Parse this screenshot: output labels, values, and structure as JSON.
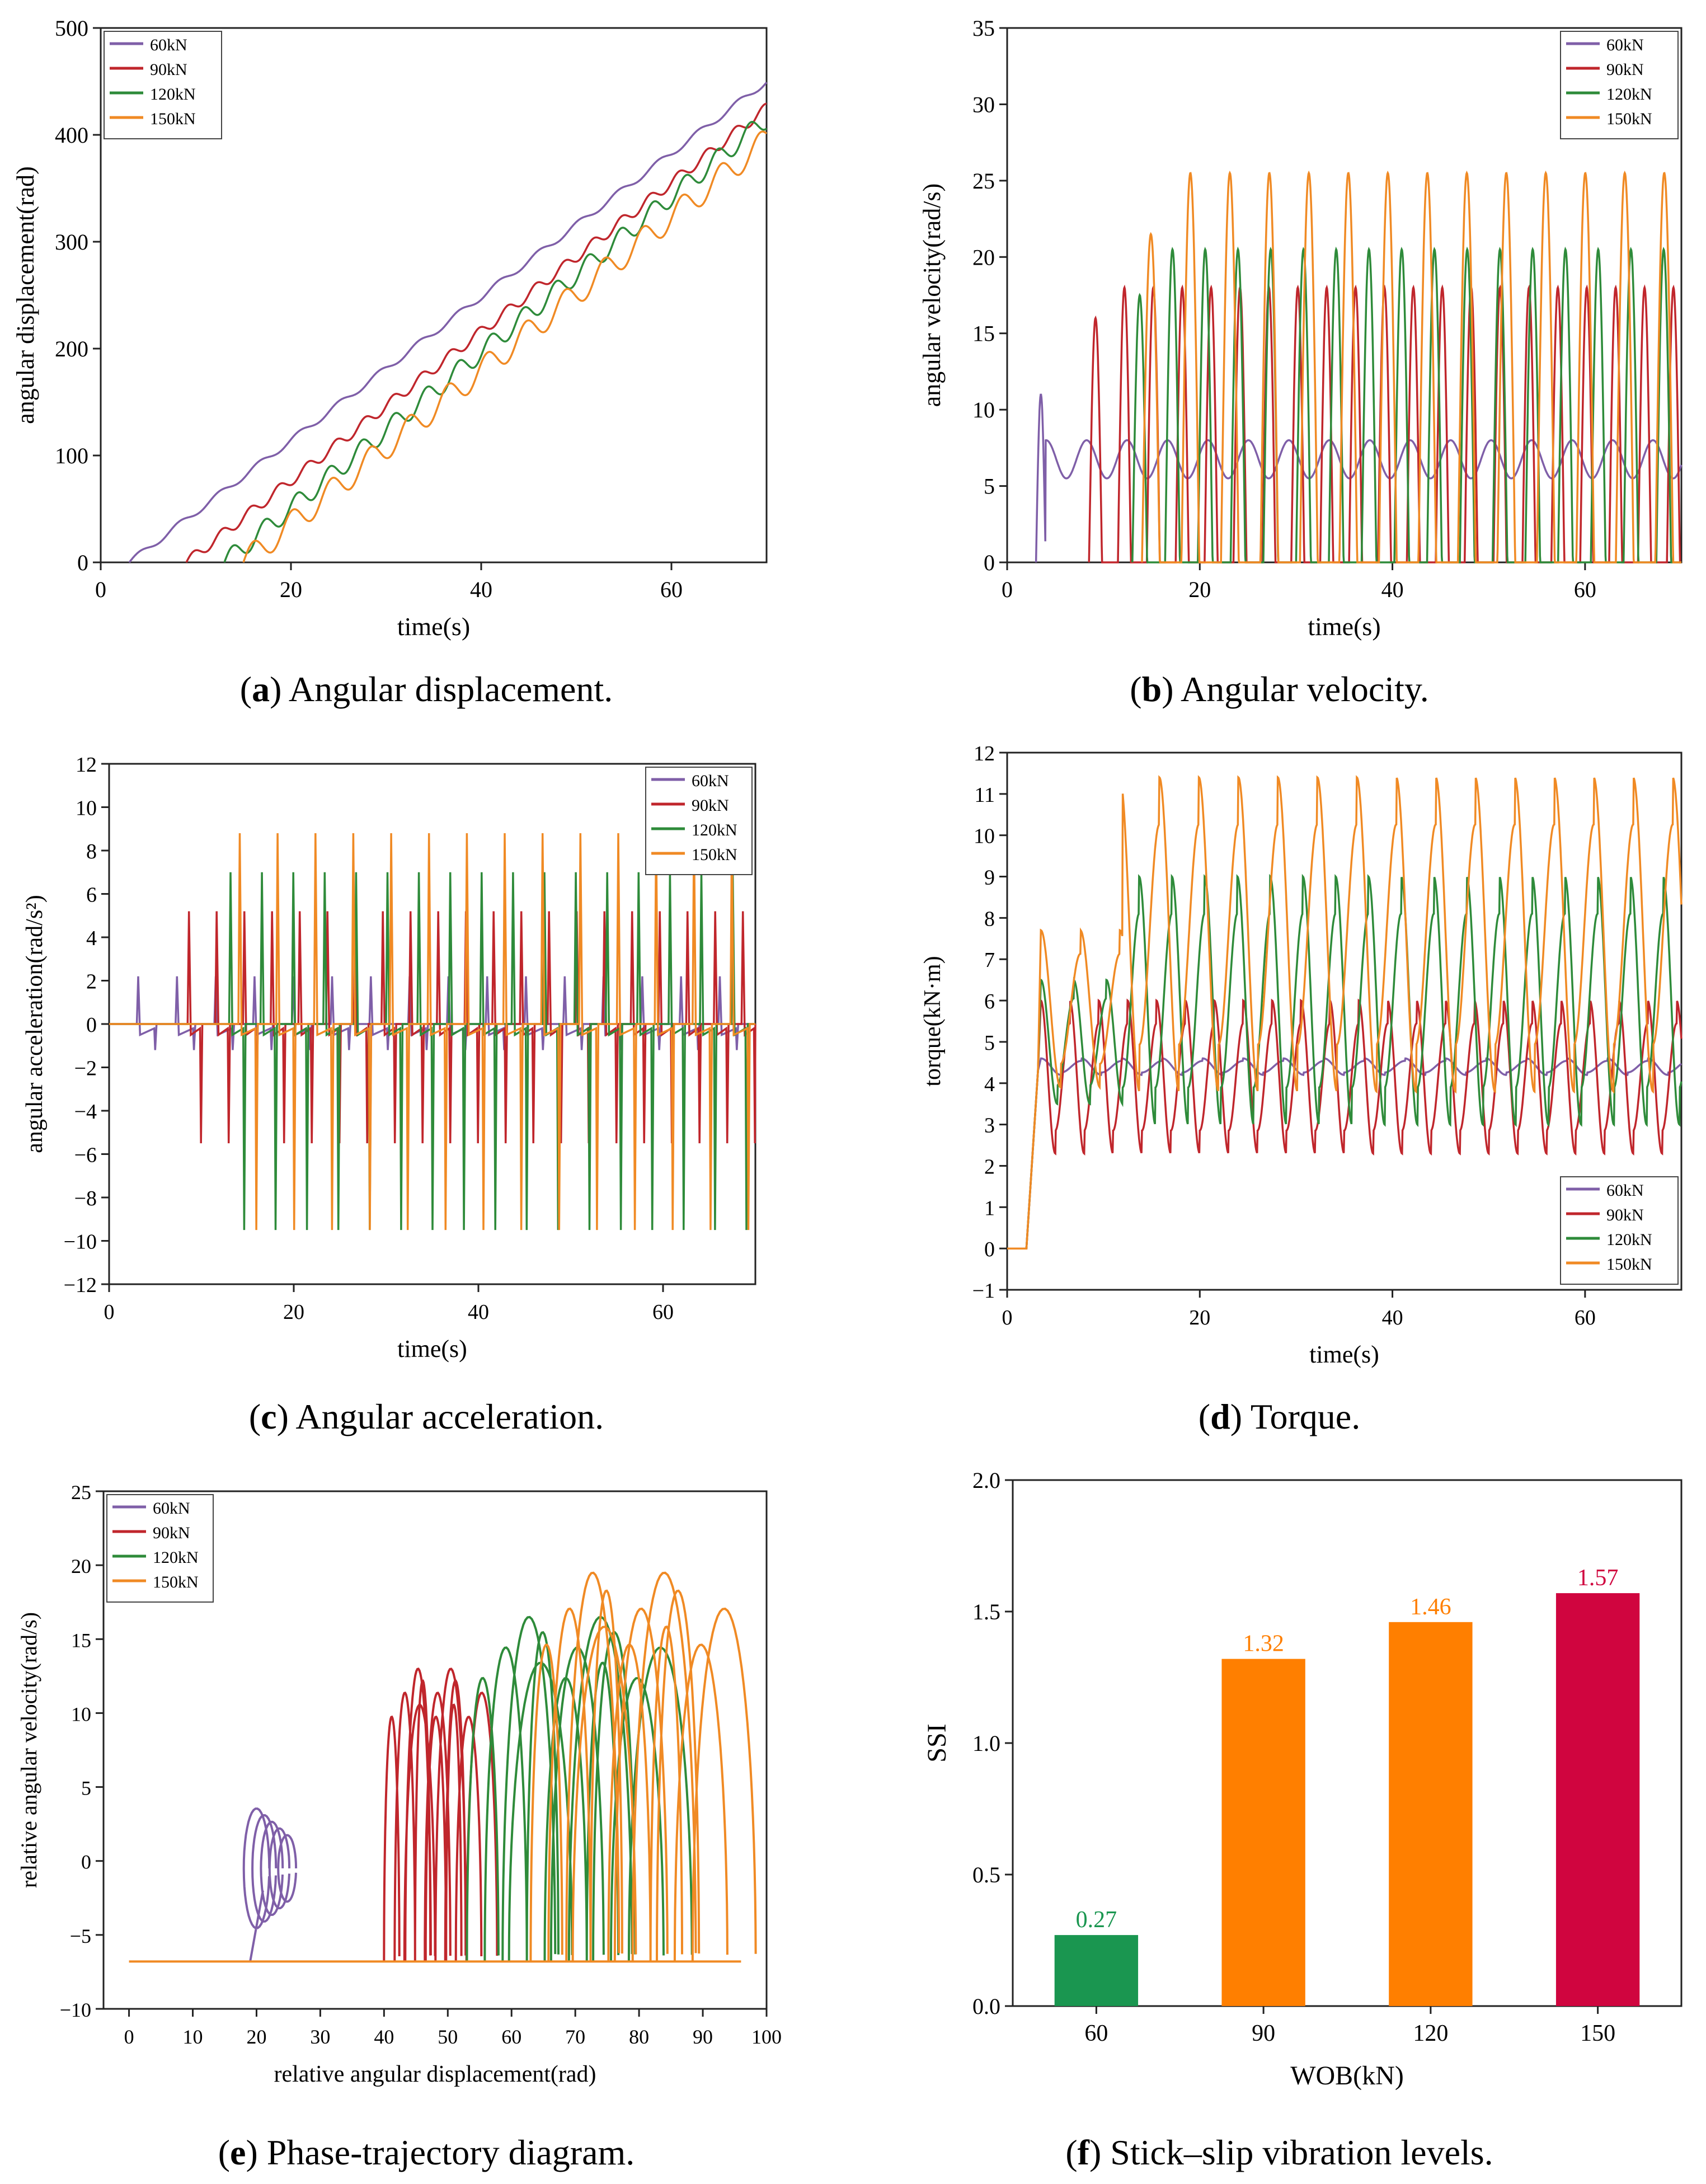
{
  "colors": {
    "s60": "#7f5fa8",
    "s90": "#c0262c",
    "s120": "#2e8b3a",
    "s150": "#f08a24",
    "bar60": "#1a9650",
    "bar90": "#ff7f00",
    "bar150": "#d0053f"
  },
  "captions": {
    "a": {
      "letter": "a",
      "text": " Angular displacement."
    },
    "b": {
      "letter": "b",
      "text": " Angular velocity."
    },
    "c": {
      "letter": "c",
      "text": " Angular acceleration."
    },
    "d": {
      "letter": "d",
      "text": " Torque."
    },
    "e": {
      "letter": "e",
      "text": " Phase-trajectory diagram."
    },
    "f": {
      "letter": "f",
      "text": " Stick–slip vibration levels."
    }
  },
  "chart_data": [
    {
      "id": "a",
      "type": "line",
      "xlabel": "time(s)",
      "ylabel": "angular displacement(rad)",
      "xlim": [
        0,
        70
      ],
      "ylim": [
        0,
        500
      ],
      "xticks": [
        0,
        20,
        40,
        60
      ],
      "yticks": [
        0,
        100,
        200,
        300,
        400,
        500
      ],
      "legend": [
        "60kN",
        "90kN",
        "120kN",
        "150kN"
      ],
      "legend_pos": "top-left",
      "series": [
        {
          "name": "60kN",
          "start": 3,
          "end_value": 450
        },
        {
          "name": "90kN",
          "start": 9,
          "end_value": 425
        },
        {
          "name": "120kN",
          "start": 13,
          "end_value": 415
        },
        {
          "name": "150kN",
          "start": 15,
          "end_value": 395
        }
      ]
    },
    {
      "id": "b",
      "type": "line",
      "xlabel": "time(s)",
      "ylabel": "angular velocity(rad/s)",
      "xlim": [
        0,
        70
      ],
      "ylim": [
        0,
        35
      ],
      "xticks": [
        0,
        20,
        40,
        60
      ],
      "yticks": [
        0,
        5,
        10,
        15,
        20,
        25,
        30,
        35
      ],
      "legend": [
        "60kN",
        "90kN",
        "120kN",
        "150kN"
      ],
      "legend_pos": "top-right",
      "series": [
        {
          "name": "60kN",
          "start": 3,
          "period": 4.2,
          "low": 5.5,
          "high": 8,
          "first_peak": 11
        },
        {
          "name": "90kN",
          "start": 8.5,
          "period": 3.0,
          "low": 0,
          "high": 18,
          "first_peak": 16
        },
        {
          "name": "120kN",
          "start": 13,
          "period": 3.4,
          "low": 0,
          "high": 20.5,
          "first_peak": 17.5
        },
        {
          "name": "150kN",
          "start": 14,
          "period": 4.1,
          "low": 0,
          "high": 25.5,
          "first_peak": 21.5
        }
      ]
    },
    {
      "id": "c",
      "type": "line",
      "xlabel": "time(s)",
      "ylabel": "angular acceleration(rad/s²)",
      "xlim": [
        0,
        70
      ],
      "ylim": [
        -12,
        12
      ],
      "xticks": [
        0,
        20,
        40,
        60
      ],
      "yticks": [
        -12,
        -10,
        -8,
        -6,
        -4,
        -2,
        0,
        2,
        4,
        6,
        8,
        10,
        12
      ],
      "legend": [
        "60kN",
        "90kN",
        "120kN",
        "150kN"
      ],
      "legend_pos": "top-right",
      "series": [
        {
          "name": "60kN",
          "start": 3,
          "period": 4.2,
          "pos": 2.2,
          "neg": -1.2
        },
        {
          "name": "90kN",
          "start": 8.5,
          "period": 3.0,
          "pos": 5.2,
          "neg": -5.5
        },
        {
          "name": "120kN",
          "start": 13,
          "period": 3.4,
          "pos": 7,
          "neg": -9.5
        },
        {
          "name": "150kN",
          "start": 14,
          "period": 4.1,
          "pos": 8.8,
          "neg": -9.5
        }
      ]
    },
    {
      "id": "d",
      "type": "line",
      "xlabel": "time(s)",
      "ylabel": "torque(kN·m)",
      "xlim": [
        0,
        70
      ],
      "ylim": [
        -1,
        12
      ],
      "xticks": [
        0,
        20,
        40,
        60
      ],
      "yticks": [
        -1,
        0,
        1,
        2,
        3,
        4,
        5,
        6,
        7,
        8,
        9,
        10,
        11,
        12
      ],
      "legend": [
        "60kN",
        "90kN",
        "120kN",
        "150kN"
      ],
      "legend_pos": "bottom-right",
      "series": [
        {
          "name": "60kN",
          "start": 2,
          "period": 4.2,
          "low": 4.2,
          "high": 4.6
        },
        {
          "name": "90kN",
          "start": 2,
          "period": 3.0,
          "low": 2.3,
          "high": 6.0
        },
        {
          "name": "120kN",
          "start": 2,
          "period": 3.4,
          "low": 3.0,
          "high": 9.0
        },
        {
          "name": "150kN",
          "start": 2,
          "period": 4.1,
          "low": 3.8,
          "high": 11.4
        }
      ]
    },
    {
      "id": "e",
      "type": "line",
      "xlabel": "relative angular displacement(rad)",
      "ylabel": "relative angular velocity(rad/s)",
      "xlim": [
        -4,
        100
      ],
      "ylim": [
        -10,
        25
      ],
      "xticks": [
        0,
        10,
        20,
        30,
        40,
        50,
        60,
        70,
        80,
        90,
        100
      ],
      "yticks": [
        -10,
        -5,
        0,
        5,
        10,
        15,
        20,
        25
      ],
      "legend": [
        "60kN",
        "90kN",
        "120kN",
        "150kN"
      ],
      "legend_pos": "top-left",
      "series": [
        {
          "name": "60kN",
          "x_range": [
            19,
            25
          ],
          "v_max": 4.5,
          "v_min": -5
        },
        {
          "name": "90kN",
          "x_range": [
            40,
            56
          ],
          "v_max": 13
        },
        {
          "name": "120kN",
          "x_range": [
            53,
            86
          ],
          "v_max": 16.5
        },
        {
          "name": "150kN",
          "x_range": [
            63,
            96
          ],
          "v_max": 19.5
        }
      ],
      "baseline": -6.8
    },
    {
      "id": "f",
      "type": "bar",
      "xlabel": "WOB(kN)",
      "ylabel": "SSI",
      "ylim": [
        0,
        2.0
      ],
      "yticks": [
        "0.0",
        "0.5",
        "1.0",
        "1.5",
        "2.0"
      ],
      "categories": [
        "60",
        "90",
        "120",
        "150"
      ],
      "values": [
        0.27,
        1.32,
        1.46,
        1.57
      ],
      "labels": [
        "0.27",
        "1.32",
        "1.46",
        "1.57"
      ]
    }
  ]
}
